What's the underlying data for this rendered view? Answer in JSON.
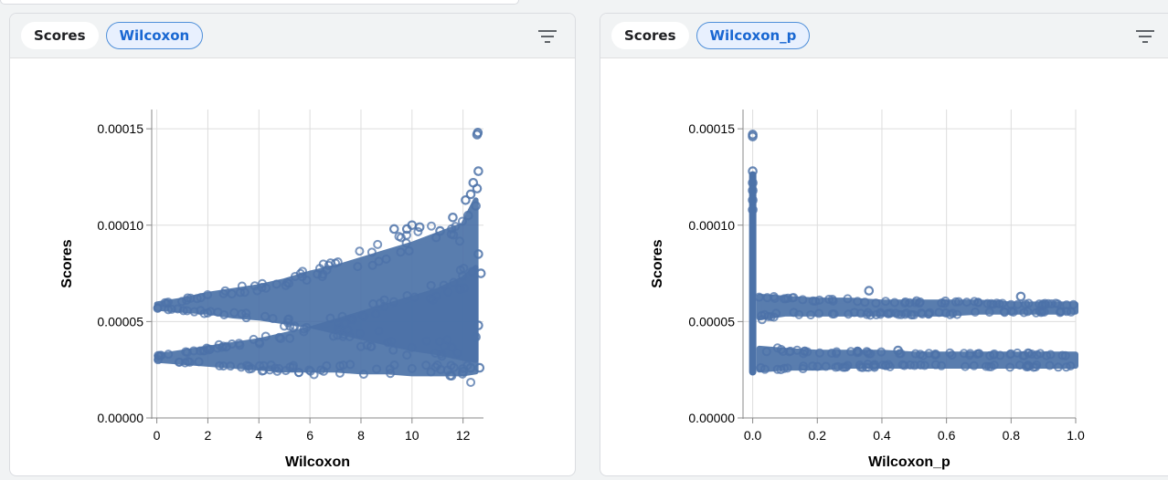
{
  "charts": [
    {
      "y_chip": "Scores",
      "x_chip": "Wilcoxon",
      "filter_icon": "filter-icon"
    },
    {
      "y_chip": "Scores",
      "x_chip": "Wilcoxon_p",
      "filter_icon": "filter-icon"
    }
  ],
  "colors": {
    "point": "#4c72a8",
    "grid": "#dddddd",
    "axis": "#888888"
  },
  "chart_data": [
    {
      "type": "scatter",
      "xlabel": "Wilcoxon",
      "ylabel": "Scores",
      "xlim": [
        -0.2,
        12.8
      ],
      "ylim": [
        0,
        0.00016
      ],
      "x_ticks": [
        0,
        2,
        4,
        6,
        8,
        10,
        12
      ],
      "x_tick_labels": [
        "0",
        "2",
        "4",
        "6",
        "8",
        "10",
        "12"
      ],
      "y_ticks": [
        0,
        5e-05,
        0.0001,
        0.00015
      ],
      "y_tick_labels": [
        "0.00000",
        "0.00005",
        "0.00010",
        "0.00015"
      ],
      "grid": true,
      "series": [
        {
          "x": [
            0,
            1,
            2,
            3,
            4,
            5,
            6,
            7,
            8,
            9,
            10,
            11,
            12,
            12.5
          ],
          "y_low": [
            5.7e-05,
            5.6e-05,
            5.5e-05,
            5.3e-05,
            5.2e-05,
            5e-05,
            4.8e-05,
            4.5e-05,
            4.2e-05,
            3.9e-05,
            3.6e-05,
            3.4e-05,
            3.1e-05,
            3e-05
          ],
          "y_high": [
            5.9e-05,
            6.1e-05,
            6.4e-05,
            6.6e-05,
            6.8e-05,
            7.1e-05,
            7.5e-05,
            7.8e-05,
            8.2e-05,
            8.6e-05,
            9e-05,
            9.5e-05,
            0.0001,
            0.000113
          ]
        },
        {
          "x": [
            0,
            1,
            2,
            3,
            4,
            5,
            6,
            7,
            8,
            9,
            10,
            11,
            12,
            12.5
          ],
          "y_low": [
            3e-05,
            2.9e-05,
            2.8e-05,
            2.7e-05,
            2.6e-05,
            2.5e-05,
            2.5e-05,
            2.5e-05,
            2.4e-05,
            2.4e-05,
            2.3e-05,
            2.3e-05,
            2.3e-05,
            2.4e-05
          ],
          "y_high": [
            3.2e-05,
            3.4e-05,
            3.6e-05,
            3.8e-05,
            4e-05,
            4.3e-05,
            4.6e-05,
            5e-05,
            5.4e-05,
            5.8e-05,
            6.2e-05,
            6.6e-05,
            7.2e-05,
            7.8e-05
          ]
        }
      ],
      "outliers": [
        {
          "x": 12.55,
          "y": 0.000147
        },
        {
          "x": 12.58,
          "y": 0.000148
        },
        {
          "x": 12.6,
          "y": 0.000128
        },
        {
          "x": 12.4,
          "y": 0.000122
        },
        {
          "x": 12.55,
          "y": 0.000119
        },
        {
          "x": 12.3,
          "y": 0.000116
        },
        {
          "x": 12.1,
          "y": 0.000113
        },
        {
          "x": 12.5,
          "y": 0.00011
        },
        {
          "x": 11.6,
          "y": 0.000104
        },
        {
          "x": 12.2,
          "y": 0.000105
        },
        {
          "x": 10.0,
          "y": 0.0001
        },
        {
          "x": 9.8,
          "y": 9.8e-05
        },
        {
          "x": 10.3,
          "y": 9.9e-05
        },
        {
          "x": 9.3,
          "y": 9.8e-05
        },
        {
          "x": 11.1,
          "y": 9.7e-05
        },
        {
          "x": 12.6,
          "y": 8.5e-05
        },
        {
          "x": 12.7,
          "y": 7.5e-05
        },
        {
          "x": 12.6,
          "y": 4.8e-05
        },
        {
          "x": 12.5,
          "y": 4.2e-05
        },
        {
          "x": 12.3,
          "y": 2.6e-05
        },
        {
          "x": 12.65,
          "y": 2.6e-05
        },
        {
          "x": 11.5,
          "y": 2.2e-05
        },
        {
          "x": 12.0,
          "y": 2.4e-05
        }
      ]
    },
    {
      "type": "scatter",
      "xlabel": "Wilcoxon_p",
      "ylabel": "Scores",
      "xlim": [
        -0.03,
        1.0
      ],
      "ylim": [
        0,
        0.00016
      ],
      "x_ticks": [
        0,
        0.2,
        0.4,
        0.6,
        0.8,
        1.0
      ],
      "x_tick_labels": [
        "0.0",
        "0.2",
        "0.4",
        "0.6",
        "0.8",
        "1.0"
      ],
      "y_ticks": [
        0,
        5e-05,
        0.0001,
        0.00015
      ],
      "y_tick_labels": [
        "0.00000",
        "0.00005",
        "0.00010",
        "0.00015"
      ],
      "grid": true,
      "series": [
        {
          "x": [
            0.02,
            0.1,
            0.2,
            0.3,
            0.4,
            0.5,
            0.6,
            0.7,
            0.8,
            0.9,
            1.0
          ],
          "y_low": [
            5.2e-05,
            5.4e-05,
            5.4e-05,
            5.4e-05,
            5.4e-05,
            5.4e-05,
            5.4e-05,
            5.5e-05,
            5.5e-05,
            5.5e-05,
            5.5e-05
          ],
          "y_high": [
            6.3e-05,
            6.2e-05,
            6.1e-05,
            6.1e-05,
            6e-05,
            6e-05,
            6e-05,
            6e-05,
            5.9e-05,
            5.9e-05,
            5.9e-05
          ]
        },
        {
          "x": [
            0.02,
            0.1,
            0.2,
            0.3,
            0.4,
            0.5,
            0.6,
            0.7,
            0.8,
            0.9,
            1.0
          ],
          "y_low": [
            2.5e-05,
            2.6e-05,
            2.6e-05,
            2.7e-05,
            2.7e-05,
            2.7e-05,
            2.7e-05,
            2.7e-05,
            2.7e-05,
            2.7e-05,
            2.7e-05
          ],
          "y_high": [
            3.6e-05,
            3.5e-05,
            3.4e-05,
            3.4e-05,
            3.4e-05,
            3.3e-05,
            3.3e-05,
            3.3e-05,
            3.3e-05,
            3.3e-05,
            3.3e-05
          ]
        }
      ],
      "near_zero_column": {
        "x": 0.0,
        "y_min": 2.2e-05,
        "y_max": 0.000128
      },
      "outliers": [
        {
          "x": 0.0,
          "y": 0.000147
        },
        {
          "x": 0.0,
          "y": 0.000146
        },
        {
          "x": 0.0,
          "y": 0.000128
        },
        {
          "x": 0.0,
          "y": 0.000122
        },
        {
          "x": 0.0,
          "y": 0.000118
        },
        {
          "x": 0.0,
          "y": 0.000113
        },
        {
          "x": 0.0,
          "y": 0.000108
        },
        {
          "x": 0.36,
          "y": 6.6e-05
        },
        {
          "x": 0.45,
          "y": 3.5e-05
        },
        {
          "x": 0.83,
          "y": 6.3e-05
        }
      ]
    }
  ]
}
